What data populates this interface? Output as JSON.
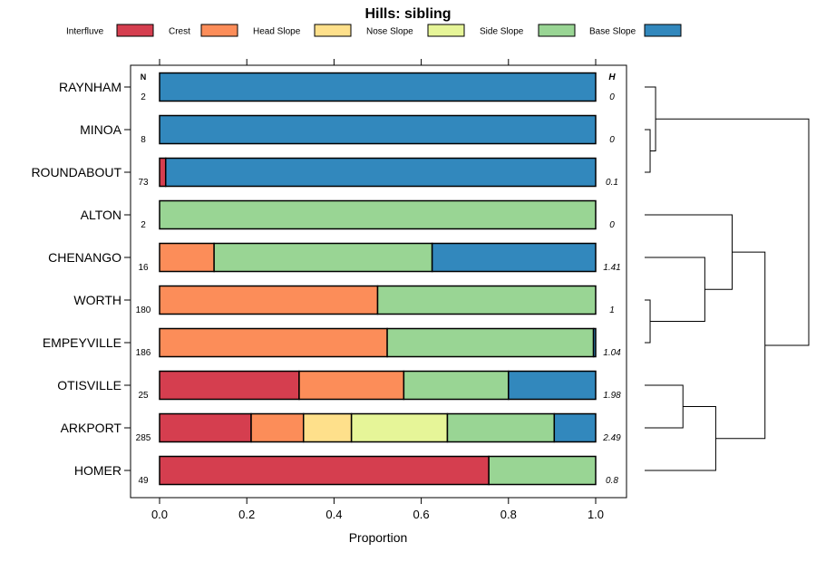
{
  "chart_data": {
    "type": "bar",
    "stacked": true,
    "orientation": "horizontal",
    "title": "Hills: sibling",
    "xlabel": "Proportion",
    "ylabel": "",
    "xlim": [
      -0.04,
      1.07
    ],
    "xticks": [
      0.0,
      0.2,
      0.4,
      0.6,
      0.8,
      1.0
    ],
    "xtick_labels": [
      "0.0",
      "0.2",
      "0.4",
      "0.6",
      "0.8",
      "1.0"
    ],
    "legend_position": "top",
    "legend": [
      {
        "name": "Interfluve",
        "color": "#d53e4f"
      },
      {
        "name": "Crest",
        "color": "#fc8d59"
      },
      {
        "name": "Head Slope",
        "color": "#fee08b"
      },
      {
        "name": "Nose Slope",
        "color": "#e6f598"
      },
      {
        "name": "Side Slope",
        "color": "#99d594"
      },
      {
        "name": "Base Slope",
        "color": "#3288bd"
      }
    ],
    "n_header": "N",
    "h_header": "H",
    "categories": [
      "RAYNHAM",
      "MINOA",
      "ROUNDABOUT",
      "ALTON",
      "CHENANGO",
      "WORTH",
      "EMPEYVILLE",
      "OTISVILLE",
      "ARKPORT",
      "HOMER"
    ],
    "n_values": [
      "2",
      "8",
      "73",
      "2",
      "16",
      "180",
      "186",
      "25",
      "285",
      "49"
    ],
    "h_values": [
      "0",
      "0",
      "0.1",
      "0",
      "1.41",
      "1",
      "1.04",
      "1.98",
      "2.49",
      "0.8"
    ],
    "series": [
      {
        "name": "Interfluve",
        "values": [
          0,
          0,
          0.014,
          0,
          0,
          0,
          0,
          0.32,
          0.21,
          0.755
        ]
      },
      {
        "name": "Crest",
        "values": [
          0,
          0,
          0,
          0,
          0.125,
          0.5,
          0.522,
          0.24,
          0.12,
          0
        ]
      },
      {
        "name": "Head Slope",
        "values": [
          0,
          0,
          0,
          0,
          0,
          0,
          0,
          0,
          0.11,
          0
        ]
      },
      {
        "name": "Nose Slope",
        "values": [
          0,
          0,
          0,
          0,
          0,
          0,
          0,
          0,
          0.22,
          0
        ]
      },
      {
        "name": "Side Slope",
        "values": [
          0,
          0,
          0,
          1.0,
          0.5,
          0.5,
          0.473,
          0.24,
          0.245,
          0.245
        ]
      },
      {
        "name": "Base Slope",
        "values": [
          1.0,
          1.0,
          0.986,
          0,
          0.375,
          0,
          0.005,
          0.2,
          0.095,
          0
        ]
      }
    ],
    "dendrogram": {
      "description": "hierarchical clustering of the rows",
      "merges": [
        {
          "a": "MINOA",
          "b": "ROUNDABOUT",
          "height": 0.05
        },
        {
          "a": "RAYNHAM",
          "b": "c1",
          "height": 0.1
        },
        {
          "a": "WORTH",
          "b": "EMPEYVILLE",
          "height": 0.05
        },
        {
          "a": "CHENANGO",
          "b": "c3",
          "height": 0.55
        },
        {
          "a": "ALTON",
          "b": "c4",
          "height": 0.8
        },
        {
          "a": "OTISVILLE",
          "b": "ARKPORT",
          "height": 0.35
        },
        {
          "a": "c6",
          "b": "HOMER",
          "height": 0.65
        },
        {
          "a": "c5",
          "b": "c7",
          "height": 1.1
        },
        {
          "a": "c2",
          "b": "c8",
          "height": 1.5
        }
      ],
      "max_height": 1.5
    }
  }
}
